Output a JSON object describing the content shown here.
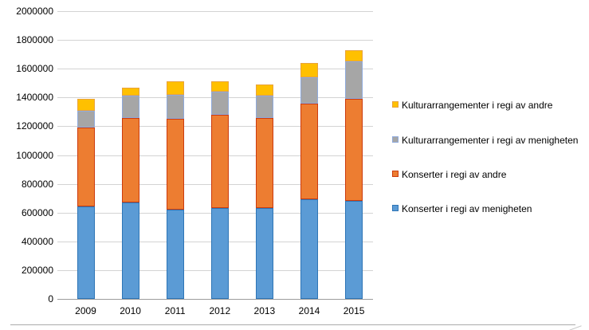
{
  "chart_data": {
    "type": "bar",
    "stacked": true,
    "title": "",
    "xlabel": "",
    "ylabel": "",
    "categories": [
      "2009",
      "2010",
      "2011",
      "2012",
      "2013",
      "2014",
      "2015"
    ],
    "series": [
      {
        "key": "konserter-menigheten",
        "name": "Konserter i regi av menigheten",
        "color": "#5B9BD5",
        "border_color": "#2E75B6",
        "values": [
          640000,
          670000,
          620000,
          630000,
          630000,
          690000,
          680000
        ]
      },
      {
        "key": "konserter-andre",
        "name": "Konserter i regi av andre",
        "color": "#ED7D31",
        "border_color": "#CC3B0E",
        "values": [
          550000,
          590000,
          630000,
          650000,
          630000,
          670000,
          710000
        ]
      },
      {
        "key": "kultur-menigheten",
        "name": "Kulturarrangementer i regi av menigheten",
        "color": "#A6A6A6",
        "border_color": "#8FAADC",
        "values": [
          120000,
          150000,
          170000,
          160000,
          150000,
          180000,
          260000
        ]
      },
      {
        "key": "kultur-andre",
        "name": "Kulturarrangementer i regi av andre",
        "color": "#FFC000",
        "border_color": "#E8A33D",
        "values": [
          80000,
          60000,
          90000,
          70000,
          80000,
          100000,
          80000
        ]
      }
    ],
    "totals": [
      1390000,
      1470000,
      1510000,
      1510000,
      1490000,
      1640000,
      1730000
    ],
    "ylim": [
      0,
      2000000
    ],
    "ytick_step": 200000,
    "ytick_labels": [
      "0",
      "200000",
      "400000",
      "600000",
      "800000",
      "1000000",
      "1200000",
      "1400000",
      "1600000",
      "1800000",
      "2000000"
    ],
    "grid": true,
    "gridline_color": "#D3D3D3",
    "axis_line_color": "#9C9C9C",
    "legend_position": "right",
    "legend_order": [
      "kultur-andre",
      "kultur-menigheten",
      "konserter-andre",
      "konserter-menigheten"
    ]
  }
}
